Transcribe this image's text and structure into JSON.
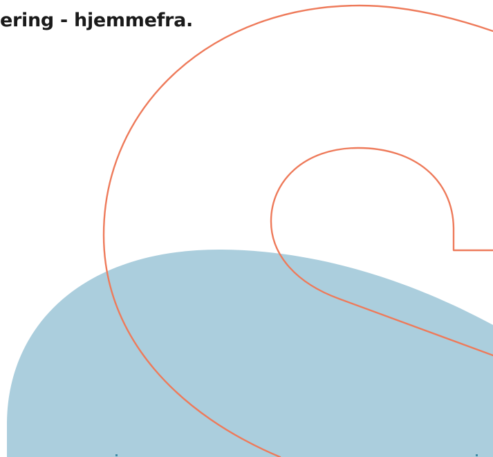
{
  "hero": {
    "headline": "ering - hjemmefra."
  },
  "colors": {
    "background": "#ffffff",
    "text": "#1a1a1a",
    "blue_shape": "#abcedd",
    "orange_outline": "#ee7a5a"
  },
  "icons": {
    "decorative_shape": "ampersand-outline-graphic"
  }
}
